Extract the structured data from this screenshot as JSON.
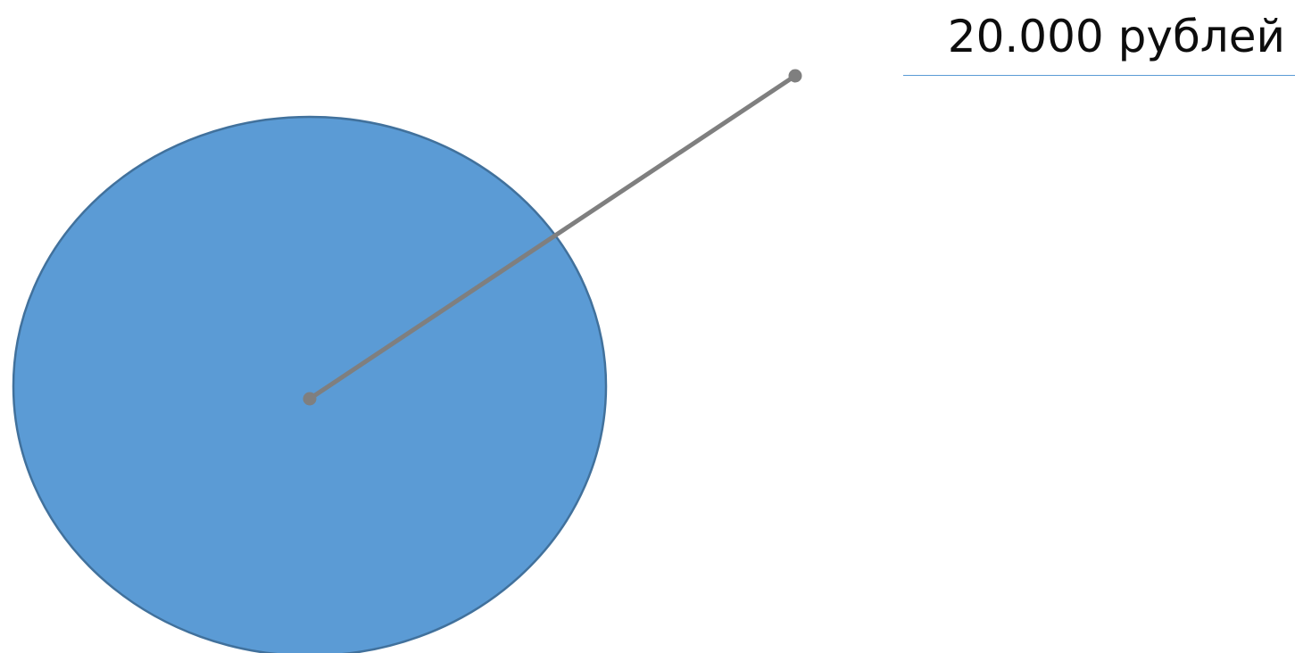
{
  "colors": {
    "circle_fill": "#5b9bd5",
    "circle_stroke": "#41719c",
    "leader_line": "#7f7f7f",
    "label_text": "#0d0d0d",
    "underline": "#5b9bd5",
    "background": "#ffffff"
  },
  "callout": {
    "label": "20.000 рублей"
  }
}
